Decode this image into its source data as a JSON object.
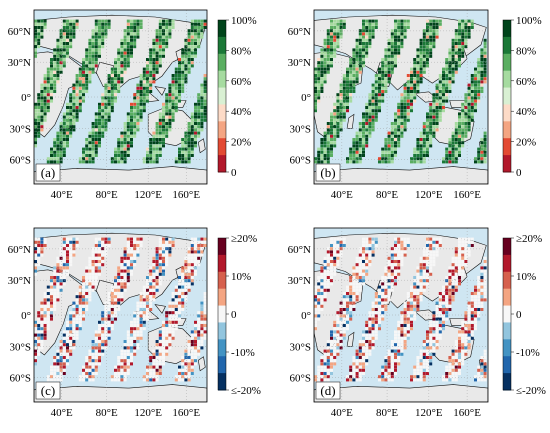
{
  "figure": {
    "colors": {
      "ocean": "#cfe6f2",
      "land": "#e9e9e9",
      "coast": "#111111",
      "border": "#666666",
      "graticule": "#9a9a9a"
    },
    "panels": [
      {
        "label": "(a)",
        "kind": "percent",
        "colorbar": {
          "ticks": [
            "100%",
            "80%",
            "60%",
            "40%",
            "20%",
            "0"
          ]
        },
        "lat_ticks": [
          "60°N",
          "30°N",
          "0°",
          "30°S",
          "60°S"
        ],
        "lon_ticks": [
          "40°E",
          "80°E",
          "120°E",
          "160°E"
        ],
        "swath_offset": 0
      },
      {
        "label": "(b)",
        "kind": "percent",
        "colorbar": {
          "ticks": [
            "100%",
            "80%",
            "60%",
            "40%",
            "20%",
            "0"
          ]
        },
        "lat_ticks": [
          "60°N",
          "30°N",
          "0°",
          "30°S",
          "60°S"
        ],
        "lon_ticks": [
          "40°E",
          "80°E",
          "120°E",
          "160°E"
        ],
        "swath_offset": 1
      },
      {
        "label": "(c)",
        "kind": "diff",
        "colorbar": {
          "ticks": [
            "≥20%",
            "10%",
            "0",
            "-10%",
            "≤-20%"
          ]
        },
        "lat_ticks": [
          "60°N",
          "30°N",
          "0°",
          "30°S",
          "60°S"
        ],
        "lon_ticks": [
          "40°E",
          "80°E",
          "120°E",
          "160°E"
        ],
        "swath_offset": 0
      },
      {
        "label": "(d)",
        "kind": "diff",
        "colorbar": {
          "ticks": [
            "≥20%",
            "10%",
            "0",
            "-10%",
            "≤-20%"
          ]
        },
        "lat_ticks": [
          "60°N",
          "30°N",
          "0°",
          "30°S",
          "60°S"
        ],
        "lon_ticks": [
          "40°E",
          "80°E",
          "120°E",
          "160°E"
        ],
        "swath_offset": 1
      }
    ],
    "colormaps": {
      "percent": [
        "#b2182b",
        "#e34a33",
        "#f4a582",
        "#fddbc7",
        "#d9f0d3",
        "#a6dba0",
        "#5aae61",
        "#1b7837",
        "#00441b"
      ],
      "diff": [
        "#053061",
        "#2166ac",
        "#4393c3",
        "#92c5de",
        "#f7f7f7",
        "#f4a582",
        "#d6604d",
        "#b2182b",
        "#67001f"
      ]
    }
  }
}
